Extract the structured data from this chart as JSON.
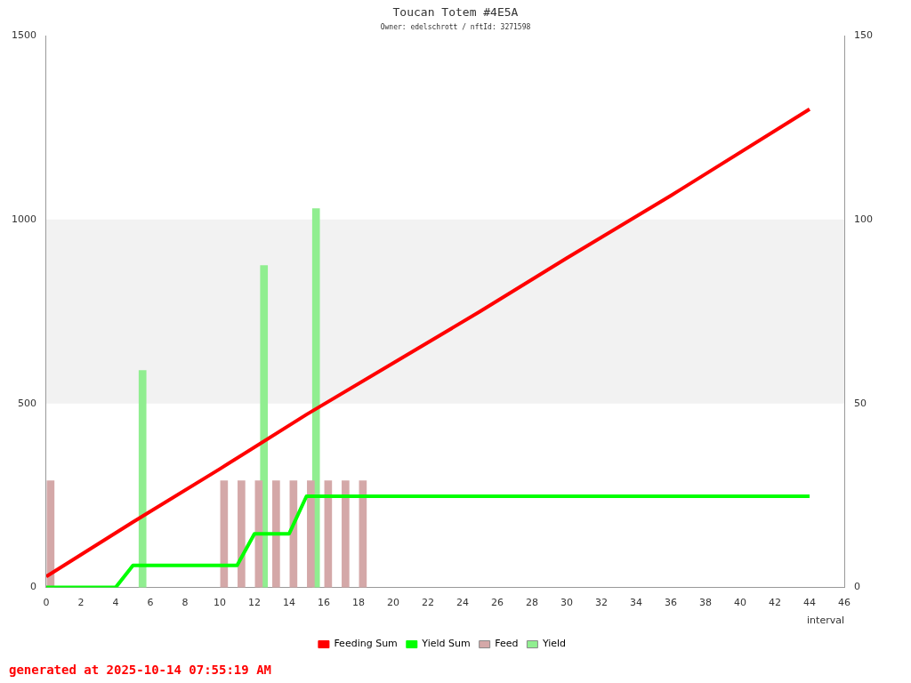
{
  "chart_data": {
    "type": "line",
    "title": "Toucan Totem #4E5A",
    "subtitle": "Owner: edelschrott / nftId: 3271598",
    "xlabel": "interval",
    "xlim": [
      0,
      46
    ],
    "xticks": [
      0,
      2,
      4,
      6,
      8,
      10,
      12,
      14,
      16,
      18,
      20,
      22,
      24,
      26,
      28,
      30,
      32,
      34,
      36,
      38,
      40,
      42,
      44,
      46
    ],
    "ylim": [
      0,
      1500
    ],
    "yticks": [
      0,
      500,
      1000,
      1500
    ],
    "y2lim": [
      0,
      150
    ],
    "y2ticks": [
      0,
      50,
      100,
      150
    ],
    "series": [
      {
        "name": "Feeding Sum",
        "color": "#ff0000",
        "x": [
          0,
          5,
          10,
          15,
          20,
          25,
          30,
          36,
          44
        ],
        "values": [
          30,
          178,
          322,
          470,
          610,
          750,
          895,
          1065,
          1300
        ]
      },
      {
        "name": "Yield Sum",
        "color": "#00ff00",
        "x": [
          0,
          4,
          5,
          11,
          12,
          14,
          15,
          44
        ],
        "values": [
          0,
          0,
          60,
          60,
          146,
          146,
          248,
          248
        ]
      },
      {
        "name": "Feed",
        "type": "bar",
        "axis": "y2",
        "color": "#d4a8a8",
        "x": [
          0.25,
          10.25,
          11.25,
          12.25,
          13.25,
          14.25,
          15.25,
          16.25,
          17.25,
          18.25
        ],
        "values": [
          29,
          29,
          29,
          29,
          29,
          29,
          29,
          29,
          29,
          29
        ]
      },
      {
        "name": "Yield",
        "type": "bar",
        "axis": "y2",
        "color": "#90ee90",
        "x": [
          5.55,
          12.55,
          15.55
        ],
        "values": [
          59,
          87.5,
          103
        ]
      }
    ],
    "bands": [
      {
        "axis": "y",
        "from": 500,
        "to": 1000,
        "color": "#f2f2f2"
      }
    ],
    "grid": false,
    "legend": "bottom",
    "marker": "none",
    "line_style": "solid",
    "annotations": [
      "generated at 2025-10-14 07:55:19 AM"
    ]
  }
}
